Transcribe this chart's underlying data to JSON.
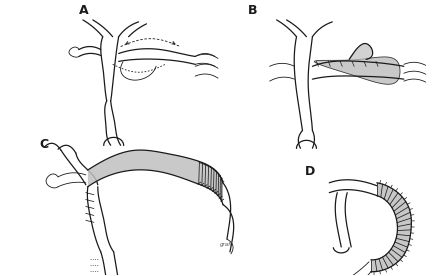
{
  "background_color": "#ffffff",
  "line_color": "#1a1a1a",
  "fill_color": "#c0c0c0",
  "fill_light": "#d8d8d8",
  "label_A": "A",
  "label_B": "B",
  "label_C": "C",
  "label_D": "D",
  "label_fontsize": 9,
  "label_fontweight": "bold",
  "figsize": [
    4.4,
    2.76
  ],
  "dpi": 100
}
